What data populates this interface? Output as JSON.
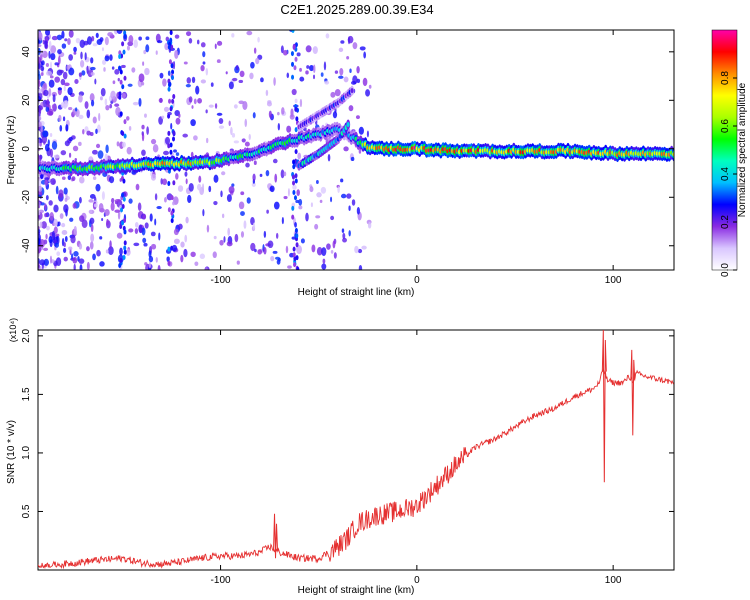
{
  "title": "C2E1.2025.289.00.39.E34",
  "chart_data": [
    {
      "type": "heatmap",
      "name": "spectrogram",
      "xlabel": "Height of straight line (km)",
      "ylabel": "Frequency (Hz)",
      "xlim": [
        -193,
        131
      ],
      "ylim": [
        -50,
        49
      ],
      "xticks": [
        -100,
        0,
        100
      ],
      "yticks": [
        -40,
        -20,
        0,
        20,
        40
      ],
      "colorbar": {
        "label": "Normalized spectral amplitude",
        "range": [
          0,
          1
        ],
        "ticks": [
          0.0,
          0.2,
          0.4,
          0.6,
          0.8
        ],
        "tick_labels": [
          "0.0",
          "0.2",
          "0.4",
          "0.6",
          "0.8"
        ],
        "colors": [
          "#ffffff",
          "#d9c6ff",
          "#8a2be2",
          "#0000ff",
          "#00bfff",
          "#00ffbf",
          "#00ff00",
          "#aaff00",
          "#ffff00",
          "#ff8c00",
          "#ff0000",
          "#ff00aa"
        ]
      },
      "ridge": {
        "x": [
          -193,
          -170,
          -150,
          -130,
          -110,
          -95,
          -80,
          -70,
          -60,
          -50,
          -40,
          -35,
          -30,
          -25,
          -20,
          0,
          20,
          40,
          60,
          80,
          100,
          131
        ],
        "y": [
          -8,
          -8,
          -7,
          -6,
          -6,
          -4,
          -1,
          2,
          4,
          6,
          8,
          6,
          3,
          1,
          0,
          0,
          -1,
          -1,
          -1,
          -1,
          -2,
          -2
        ],
        "amp": [
          0.45,
          0.6,
          0.7,
          0.85,
          0.8,
          0.55,
          0.5,
          0.55,
          0.55,
          0.45,
          0.4,
          0.35,
          0.6,
          0.8,
          0.9,
          0.95,
          0.9,
          0.88,
          0.88,
          0.85,
          0.82,
          0.8
        ]
      },
      "branches": [
        {
          "x": [
            -60,
            -50,
            -40,
            -35
          ],
          "y": [
            -7,
            -2,
            4,
            10
          ],
          "amp": 0.4
        },
        {
          "x": [
            -60,
            -50,
            -40,
            -33
          ],
          "y": [
            9,
            14,
            19,
            24
          ],
          "amp": 0.25
        }
      ]
    },
    {
      "type": "line",
      "name": "snr",
      "xlabel": "Height of straight line (km)",
      "ylabel": "SNR (10 * v/v)",
      "yscale_label": "(x10⁴)",
      "xlim": [
        -193,
        131
      ],
      "ylim": [
        0,
        2.05
      ],
      "xticks": [
        -100,
        0,
        100
      ],
      "yticks": [
        0.5,
        1.0,
        1.5,
        2.0
      ],
      "ytick_labels": [
        "0.5",
        "1.0",
        "1.5",
        "2.0"
      ],
      "color": "#e53030",
      "series": [
        {
          "name": "SNR",
          "x": [
            -193,
            -180,
            -165,
            -150,
            -140,
            -130,
            -120,
            -110,
            -100,
            -90,
            -80,
            -75,
            -70,
            -60,
            -50,
            -45,
            -40,
            -35,
            -30,
            -20,
            -10,
            0,
            10,
            20,
            30,
            40,
            50,
            60,
            70,
            80,
            90,
            93,
            95,
            97,
            100,
            105,
            108,
            110,
            112,
            115,
            120,
            131
          ],
          "y": [
            0.03,
            0.05,
            0.08,
            0.1,
            0.06,
            0.05,
            0.07,
            0.1,
            0.12,
            0.12,
            0.15,
            0.2,
            0.15,
            0.1,
            0.1,
            0.15,
            0.2,
            0.28,
            0.4,
            0.47,
            0.5,
            0.55,
            0.72,
            0.9,
            1.05,
            1.12,
            1.22,
            1.32,
            1.38,
            1.48,
            1.55,
            1.6,
            1.72,
            1.62,
            1.6,
            1.6,
            1.65,
            1.62,
            1.68,
            1.66,
            1.64,
            1.6
          ]
        }
      ],
      "spikes": [
        {
          "x": 95.5,
          "low": 0.75,
          "high": 2.05
        },
        {
          "x": 110,
          "low": 1.15,
          "high": 1.88
        },
        {
          "x": -72,
          "low": 0.1,
          "high": 0.48
        }
      ]
    }
  ]
}
